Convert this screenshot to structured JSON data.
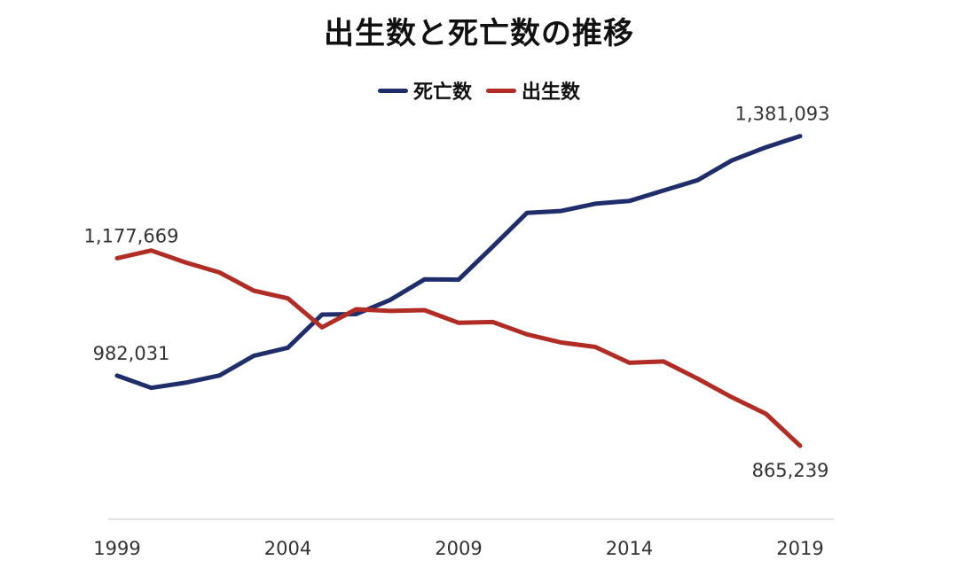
{
  "chart_data": {
    "type": "line",
    "title": "出生数と死亡数の推移",
    "x": [
      1999,
      2000,
      2001,
      2002,
      2003,
      2004,
      2005,
      2006,
      2007,
      2008,
      2009,
      2010,
      2011,
      2012,
      2013,
      2014,
      2015,
      2016,
      2017,
      2018,
      2019
    ],
    "x_ticks": [
      "1999",
      "2004",
      "2009",
      "2014",
      "2019"
    ],
    "ylim": [
      700000,
      1500000
    ],
    "grid": false,
    "legend_position": "top-center",
    "series": [
      {
        "name": "死亡数",
        "color": "#1f2d6b",
        "values": [
          982031,
          961653,
          970331,
          982379,
          1014951,
          1028602,
          1083796,
          1084451,
          1108334,
          1142407,
          1141865,
          1197014,
          1253066,
          1256359,
          1268436,
          1273004,
          1290444,
          1307748,
          1340397,
          1362470,
          1381093
        ],
        "labels": [
          {
            "index": 0,
            "text": "982,031"
          },
          {
            "index": 20,
            "text": "1,381,093"
          }
        ]
      },
      {
        "name": "出生数",
        "color": "#b22c26",
        "values": [
          1177669,
          1190547,
          1170662,
          1153855,
          1123610,
          1110721,
          1062530,
          1092674,
          1089818,
          1091156,
          1070035,
          1071304,
          1050806,
          1037231,
          1029816,
          1003539,
          1005677,
          976978,
          946065,
          918400,
          865239
        ],
        "labels": [
          {
            "index": 0,
            "text": "1,177,669"
          },
          {
            "index": 20,
            "text": "865,239"
          }
        ]
      }
    ]
  }
}
